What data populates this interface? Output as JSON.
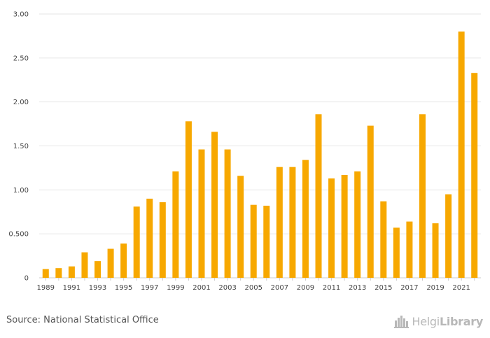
{
  "chart_data": {
    "type": "bar",
    "x": [
      1989,
      1990,
      1991,
      1992,
      1993,
      1994,
      1995,
      1996,
      1997,
      1998,
      1999,
      2000,
      2001,
      2002,
      2003,
      2004,
      2005,
      2006,
      2007,
      2008,
      2009,
      2010,
      2011,
      2012,
      2013,
      2014,
      2015,
      2016,
      2017,
      2018,
      2019,
      2020,
      2021,
      2022
    ],
    "values": [
      0.1,
      0.11,
      0.13,
      0.29,
      0.19,
      0.33,
      0.39,
      0.81,
      0.9,
      0.86,
      1.21,
      1.78,
      1.46,
      1.66,
      1.46,
      1.16,
      0.83,
      0.82,
      1.26,
      1.26,
      1.34,
      1.86,
      1.13,
      1.17,
      1.21,
      1.73,
      0.87,
      0.57,
      0.64,
      1.86,
      0.62,
      0.95,
      2.8,
      2.33
    ],
    "x_tick_labels": [
      "1989",
      "1991",
      "1993",
      "1995",
      "1997",
      "1999",
      "2001",
      "2003",
      "2005",
      "2007",
      "2009",
      "2011",
      "2013",
      "2015",
      "2017",
      "2019",
      "2021"
    ],
    "y_ticks": [
      0,
      0.5,
      1.0,
      1.5,
      2.0,
      2.5,
      3.0
    ],
    "y_tick_labels": [
      "0",
      "0.500",
      "1.00",
      "1.50",
      "2.00",
      "2.50",
      "3.00"
    ],
    "ylim": [
      0,
      3.0
    ],
    "grid": true,
    "bar_color": "#f7a800"
  },
  "footer": {
    "source": "Source: National Statistical Office",
    "logo_text_light": "Helgi",
    "logo_text_bold": "Library"
  },
  "colors": {
    "grid": "#e6e6e6",
    "axis": "#cccccc",
    "logo": "#b8b8b8"
  },
  "icons": {
    "logo_icon": "building-skyline-icon"
  }
}
